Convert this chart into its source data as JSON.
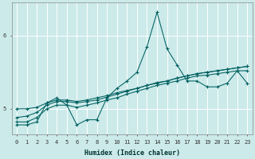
{
  "xlabel": "Humidex (Indice chaleur)",
  "bg_color": "#cceaea",
  "grid_color": "#ffffff",
  "line_color": "#006060",
  "xlim": [
    -0.5,
    23.5
  ],
  "ylim": [
    4.65,
    6.45
  ],
  "yticks": [
    5,
    6
  ],
  "xticks": [
    0,
    1,
    2,
    3,
    4,
    5,
    6,
    7,
    8,
    9,
    10,
    11,
    12,
    13,
    14,
    15,
    16,
    17,
    18,
    19,
    20,
    21,
    22,
    23
  ],
  "series": [
    {
      "x": [
        0,
        1,
        2,
        3,
        4,
        5,
        6,
        7,
        8,
        9,
        10,
        11,
        12,
        13,
        14,
        15,
        16,
        17,
        18,
        19,
        20,
        21,
        22,
        23
      ],
      "y": [
        4.78,
        4.78,
        4.82,
        5.08,
        5.15,
        5.05,
        4.78,
        4.85,
        4.85,
        5.15,
        5.28,
        5.38,
        5.5,
        5.85,
        6.32,
        5.82,
        5.6,
        5.38,
        5.38,
        5.3,
        5.3,
        5.35,
        5.52,
        5.35
      ]
    },
    {
      "x": [
        0,
        1,
        2,
        3,
        4,
        5,
        6,
        7,
        8,
        9,
        10,
        11,
        12,
        13,
        14,
        15,
        16,
        17,
        18,
        19,
        20,
        21,
        22,
        23
      ],
      "y": [
        5.0,
        5.0,
        5.02,
        5.08,
        5.12,
        5.12,
        5.1,
        5.12,
        5.15,
        5.18,
        5.22,
        5.25,
        5.28,
        5.32,
        5.35,
        5.38,
        5.42,
        5.45,
        5.48,
        5.5,
        5.52,
        5.54,
        5.56,
        5.58
      ]
    },
    {
      "x": [
        0,
        1,
        2,
        3,
        4,
        5,
        6,
        7,
        8,
        9,
        10,
        11,
        12,
        13,
        14,
        15,
        16,
        17,
        18,
        19,
        20,
        21,
        22,
        23
      ],
      "y": [
        4.88,
        4.9,
        4.95,
        5.05,
        5.1,
        5.1,
        5.08,
        5.1,
        5.12,
        5.16,
        5.2,
        5.24,
        5.28,
        5.32,
        5.36,
        5.38,
        5.42,
        5.45,
        5.48,
        5.5,
        5.52,
        5.54,
        5.56,
        5.58
      ]
    },
    {
      "x": [
        0,
        1,
        2,
        3,
        4,
        5,
        6,
        7,
        8,
        9,
        10,
        11,
        12,
        13,
        14,
        15,
        16,
        17,
        18,
        19,
        20,
        21,
        22,
        23
      ],
      "y": [
        4.82,
        4.82,
        4.88,
        5.0,
        5.05,
        5.05,
        5.02,
        5.05,
        5.08,
        5.12,
        5.15,
        5.2,
        5.24,
        5.28,
        5.32,
        5.35,
        5.38,
        5.42,
        5.45,
        5.46,
        5.48,
        5.5,
        5.52,
        5.52
      ]
    }
  ]
}
